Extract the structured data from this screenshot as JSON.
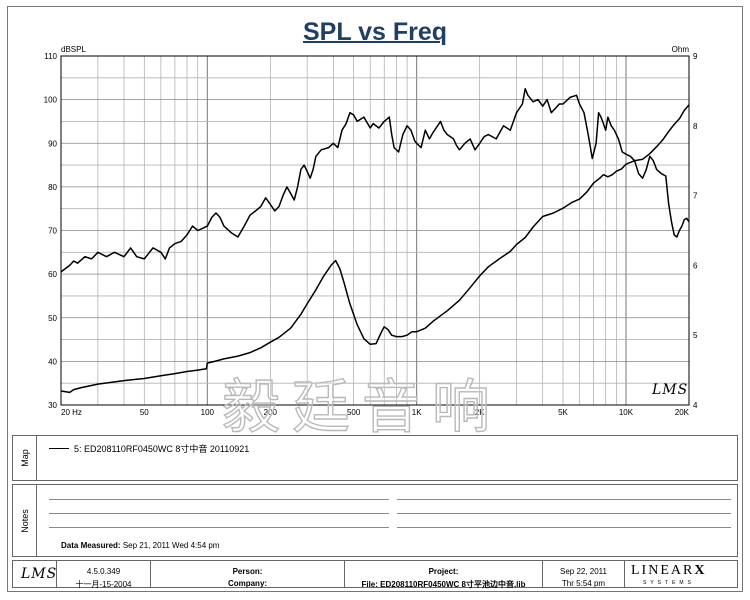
{
  "chart_data": {
    "type": "line",
    "title": "SPL vs Freq",
    "left_axis": {
      "unit": "dBSPL",
      "range": [
        30,
        110
      ],
      "ticks": [
        "30",
        "40",
        "50",
        "60",
        "70",
        "80",
        "90",
        "100",
        "110"
      ]
    },
    "right_axis": {
      "unit": "Ohm",
      "range": [
        4,
        9
      ],
      "ticks": [
        "4",
        "5",
        "6",
        "7",
        "8",
        "9"
      ]
    },
    "x_axis": {
      "scale": "log",
      "range": [
        20,
        20000
      ],
      "ticks": [
        {
          "v": 20,
          "label": "20  Hz"
        },
        {
          "v": 50,
          "label": "50"
        },
        {
          "v": 100,
          "label": "100"
        },
        {
          "v": 200,
          "label": "200"
        },
        {
          "v": 500,
          "label": "500"
        },
        {
          "v": 1000,
          "label": "1K"
        },
        {
          "v": 2000,
          "label": "2K"
        },
        {
          "v": 5000,
          "label": "5K"
        },
        {
          "v": 10000,
          "label": "10K"
        },
        {
          "v": 20000,
          "label": "20K"
        }
      ]
    },
    "grid": true,
    "series": [
      {
        "name": "SPL",
        "axis": "left",
        "points": [
          [
            20,
            60.5
          ],
          [
            22,
            62
          ],
          [
            23,
            63
          ],
          [
            24,
            62.5
          ],
          [
            26,
            64
          ],
          [
            28,
            63.5
          ],
          [
            30,
            65
          ],
          [
            33,
            64
          ],
          [
            36,
            65
          ],
          [
            40,
            64
          ],
          [
            43,
            66
          ],
          [
            46,
            64
          ],
          [
            50,
            63.5
          ],
          [
            55,
            66
          ],
          [
            60,
            65
          ],
          [
            63,
            63.5
          ],
          [
            66,
            66
          ],
          [
            70,
            67
          ],
          [
            75,
            67.5
          ],
          [
            80,
            69
          ],
          [
            85,
            71
          ],
          [
            90,
            70
          ],
          [
            95,
            70.5
          ],
          [
            100,
            71
          ],
          [
            105,
            73
          ],
          [
            110,
            74
          ],
          [
            115,
            73
          ],
          [
            120,
            71
          ],
          [
            130,
            69.5
          ],
          [
            140,
            68.5
          ],
          [
            150,
            71
          ],
          [
            160,
            73.5
          ],
          [
            170,
            74.5
          ],
          [
            180,
            75.5
          ],
          [
            190,
            77.5
          ],
          [
            200,
            76
          ],
          [
            210,
            74.5
          ],
          [
            220,
            75.5
          ],
          [
            230,
            78
          ],
          [
            240,
            80
          ],
          [
            250,
            78.5
          ],
          [
            260,
            77
          ],
          [
            270,
            80
          ],
          [
            280,
            84
          ],
          [
            290,
            85
          ],
          [
            300,
            83.5
          ],
          [
            310,
            82
          ],
          [
            320,
            84
          ],
          [
            330,
            87
          ],
          [
            350,
            88.5
          ],
          [
            380,
            89
          ],
          [
            400,
            90
          ],
          [
            420,
            89
          ],
          [
            440,
            93
          ],
          [
            460,
            94.5
          ],
          [
            480,
            97
          ],
          [
            500,
            96.5
          ],
          [
            520,
            95
          ],
          [
            560,
            96
          ],
          [
            600,
            93.5
          ],
          [
            620,
            94.5
          ],
          [
            660,
            93.5
          ],
          [
            700,
            95
          ],
          [
            740,
            96
          ],
          [
            760,
            92
          ],
          [
            780,
            89
          ],
          [
            820,
            88
          ],
          [
            860,
            92
          ],
          [
            900,
            94
          ],
          [
            940,
            93
          ],
          [
            980,
            90.5
          ],
          [
            1000,
            90
          ],
          [
            1050,
            89
          ],
          [
            1100,
            93
          ],
          [
            1150,
            91
          ],
          [
            1200,
            92.5
          ],
          [
            1300,
            95
          ],
          [
            1350,
            93
          ],
          [
            1400,
            92
          ],
          [
            1500,
            91
          ],
          [
            1550,
            89.5
          ],
          [
            1600,
            88.5
          ],
          [
            1700,
            90
          ],
          [
            1800,
            91
          ],
          [
            1900,
            88.5
          ],
          [
            2000,
            90
          ],
          [
            2100,
            91.5
          ],
          [
            2200,
            92
          ],
          [
            2400,
            91
          ],
          [
            2600,
            94
          ],
          [
            2800,
            93
          ],
          [
            3000,
            97
          ],
          [
            3200,
            99
          ],
          [
            3300,
            102.5
          ],
          [
            3400,
            101
          ],
          [
            3600,
            99.5
          ],
          [
            3800,
            100
          ],
          [
            4000,
            98.5
          ],
          [
            4200,
            100
          ],
          [
            4400,
            97
          ],
          [
            4600,
            98
          ],
          [
            4800,
            99
          ],
          [
            5000,
            99
          ],
          [
            5400,
            100.5
          ],
          [
            5800,
            101
          ],
          [
            6000,
            99
          ],
          [
            6300,
            97
          ],
          [
            6600,
            92
          ],
          [
            6900,
            86.5
          ],
          [
            7200,
            90
          ],
          [
            7400,
            97
          ],
          [
            7600,
            96
          ],
          [
            7800,
            94.5
          ],
          [
            8000,
            93
          ],
          [
            8200,
            96
          ],
          [
            8500,
            94
          ],
          [
            8800,
            93
          ],
          [
            9200,
            91
          ],
          [
            9600,
            88
          ],
          [
            10000,
            87.5
          ],
          [
            10500,
            87
          ],
          [
            11000,
            86
          ],
          [
            11500,
            83
          ],
          [
            12000,
            82
          ],
          [
            12500,
            84
          ],
          [
            13000,
            87
          ],
          [
            13500,
            86
          ],
          [
            14000,
            84
          ],
          [
            14800,
            83
          ],
          [
            15500,
            82.5
          ],
          [
            16000,
            76
          ],
          [
            16500,
            72
          ],
          [
            17000,
            69
          ],
          [
            17500,
            68.5
          ],
          [
            18000,
            70
          ],
          [
            18500,
            71
          ],
          [
            19000,
            72.5
          ],
          [
            19500,
            72.8
          ],
          [
            20000,
            72
          ]
        ]
      },
      {
        "name": "Impedance",
        "axis": "right",
        "points": [
          [
            20,
            4.2
          ],
          [
            22,
            4.18
          ],
          [
            23,
            4.22
          ],
          [
            25,
            4.25
          ],
          [
            30,
            4.3
          ],
          [
            40,
            4.35
          ],
          [
            50,
            4.38
          ],
          [
            60,
            4.42
          ],
          [
            70,
            4.45
          ],
          [
            80,
            4.48
          ],
          [
            90,
            4.5
          ],
          [
            99,
            4.52
          ],
          [
            100,
            4.6
          ],
          [
            110,
            4.63
          ],
          [
            120,
            4.66
          ],
          [
            140,
            4.7
          ],
          [
            160,
            4.75
          ],
          [
            180,
            4.82
          ],
          [
            200,
            4.9
          ],
          [
            220,
            4.97
          ],
          [
            250,
            5.1
          ],
          [
            280,
            5.3
          ],
          [
            300,
            5.45
          ],
          [
            330,
            5.65
          ],
          [
            360,
            5.85
          ],
          [
            390,
            6.0
          ],
          [
            410,
            6.07
          ],
          [
            430,
            5.95
          ],
          [
            450,
            5.75
          ],
          [
            480,
            5.45
          ],
          [
            520,
            5.15
          ],
          [
            560,
            4.95
          ],
          [
            600,
            4.87
          ],
          [
            640,
            4.88
          ],
          [
            680,
            5.05
          ],
          [
            700,
            5.12
          ],
          [
            730,
            5.08
          ],
          [
            760,
            5.0
          ],
          [
            800,
            4.98
          ],
          [
            850,
            4.98
          ],
          [
            900,
            5.0
          ],
          [
            950,
            5.05
          ],
          [
            1000,
            5.05
          ],
          [
            1100,
            5.1
          ],
          [
            1200,
            5.2
          ],
          [
            1400,
            5.35
          ],
          [
            1600,
            5.5
          ],
          [
            1800,
            5.68
          ],
          [
            2000,
            5.85
          ],
          [
            2200,
            5.98
          ],
          [
            2500,
            6.1
          ],
          [
            2800,
            6.2
          ],
          [
            3000,
            6.3
          ],
          [
            3300,
            6.4
          ],
          [
            3600,
            6.55
          ],
          [
            4000,
            6.7
          ],
          [
            4500,
            6.75
          ],
          [
            5000,
            6.82
          ],
          [
            5500,
            6.9
          ],
          [
            6000,
            6.95
          ],
          [
            6500,
            7.05
          ],
          [
            7000,
            7.18
          ],
          [
            7500,
            7.25
          ],
          [
            7800,
            7.3
          ],
          [
            8200,
            7.27
          ],
          [
            8600,
            7.3
          ],
          [
            9000,
            7.35
          ],
          [
            9500,
            7.38
          ],
          [
            10000,
            7.45
          ],
          [
            11000,
            7.5
          ],
          [
            12000,
            7.52
          ],
          [
            13000,
            7.6
          ],
          [
            14000,
            7.7
          ],
          [
            15000,
            7.8
          ],
          [
            16000,
            7.92
          ],
          [
            17000,
            8.02
          ],
          [
            18000,
            8.1
          ],
          [
            19000,
            8.22
          ],
          [
            20000,
            8.3
          ]
        ]
      }
    ]
  },
  "legend": {
    "entry": "5: ED208110RF0450WC 8寸中音 20110921"
  },
  "watermark": "毅廷音响",
  "panels": {
    "map_label": "Map",
    "notes_label": "Notes"
  },
  "notes": {
    "date_measured_label": "Data Measured:",
    "date_measured_value": "Sep 21, 2011  Wed  4:54 pm"
  },
  "footer": {
    "logo": "LMS",
    "version": "4.5.0.349",
    "build_date": "十一月-15-2004",
    "person": "Person:",
    "company": "Company:",
    "project": "Project:",
    "file": "File: ED208110RF0450WC 8寸平池边中音.lib",
    "date": "Sep 22, 2011",
    "time": "Thr  5:54 pm",
    "brand": "LINEAR",
    "brand_x": "X",
    "brand_sub": "SYSTEMS"
  }
}
